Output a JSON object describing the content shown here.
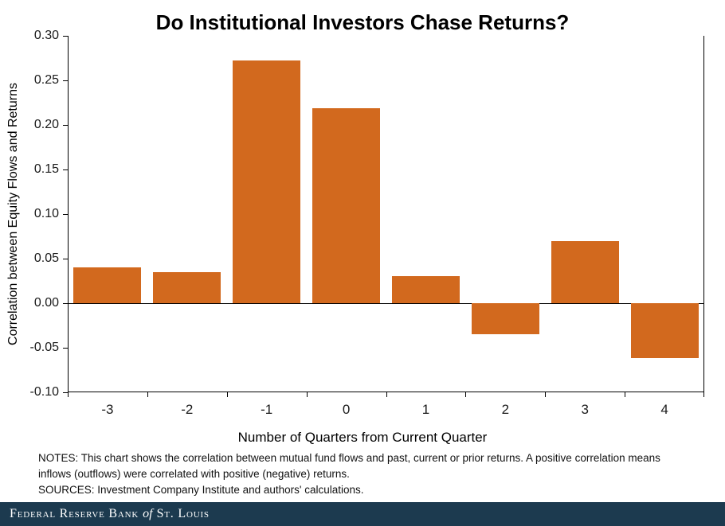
{
  "chart_data": {
    "type": "bar",
    "title": "Do Institutional Investors Chase Returns?",
    "categories": [
      "-3",
      "-2",
      "-1",
      "0",
      "1",
      "2",
      "3",
      "4"
    ],
    "values": [
      0.04,
      0.035,
      0.272,
      0.219,
      0.03,
      -0.035,
      0.07,
      -0.062
    ],
    "xlabel": "Number of Quarters from Current Quarter",
    "ylabel": "Correlation between Equity Flows and Returns",
    "ylim": [
      -0.1,
      0.3
    ],
    "yticks": [
      "0.30",
      "0.25",
      "0.20",
      "0.15",
      "0.10",
      "0.05",
      "0.00",
      "-0.05",
      "-0.10"
    ],
    "grid": false,
    "legend": "none",
    "bar_color": "#D2691E",
    "bar_gap_fraction": 0.15
  },
  "notes": {
    "notes_text": "NOTES: This chart shows the correlation between mutual fund flows and past, current or prior returns. A positive correlation means inflows (outflows) were correlated with positive (negative) returns.",
    "sources_text": "SOURCES: Investment Company Institute and authors' calculations."
  },
  "footer": {
    "bank_name_part1": "Federal Reserve Bank",
    "bank_name_of": "of",
    "bank_name_part2": "St. Louis",
    "background_color": "#1C3A4F"
  }
}
